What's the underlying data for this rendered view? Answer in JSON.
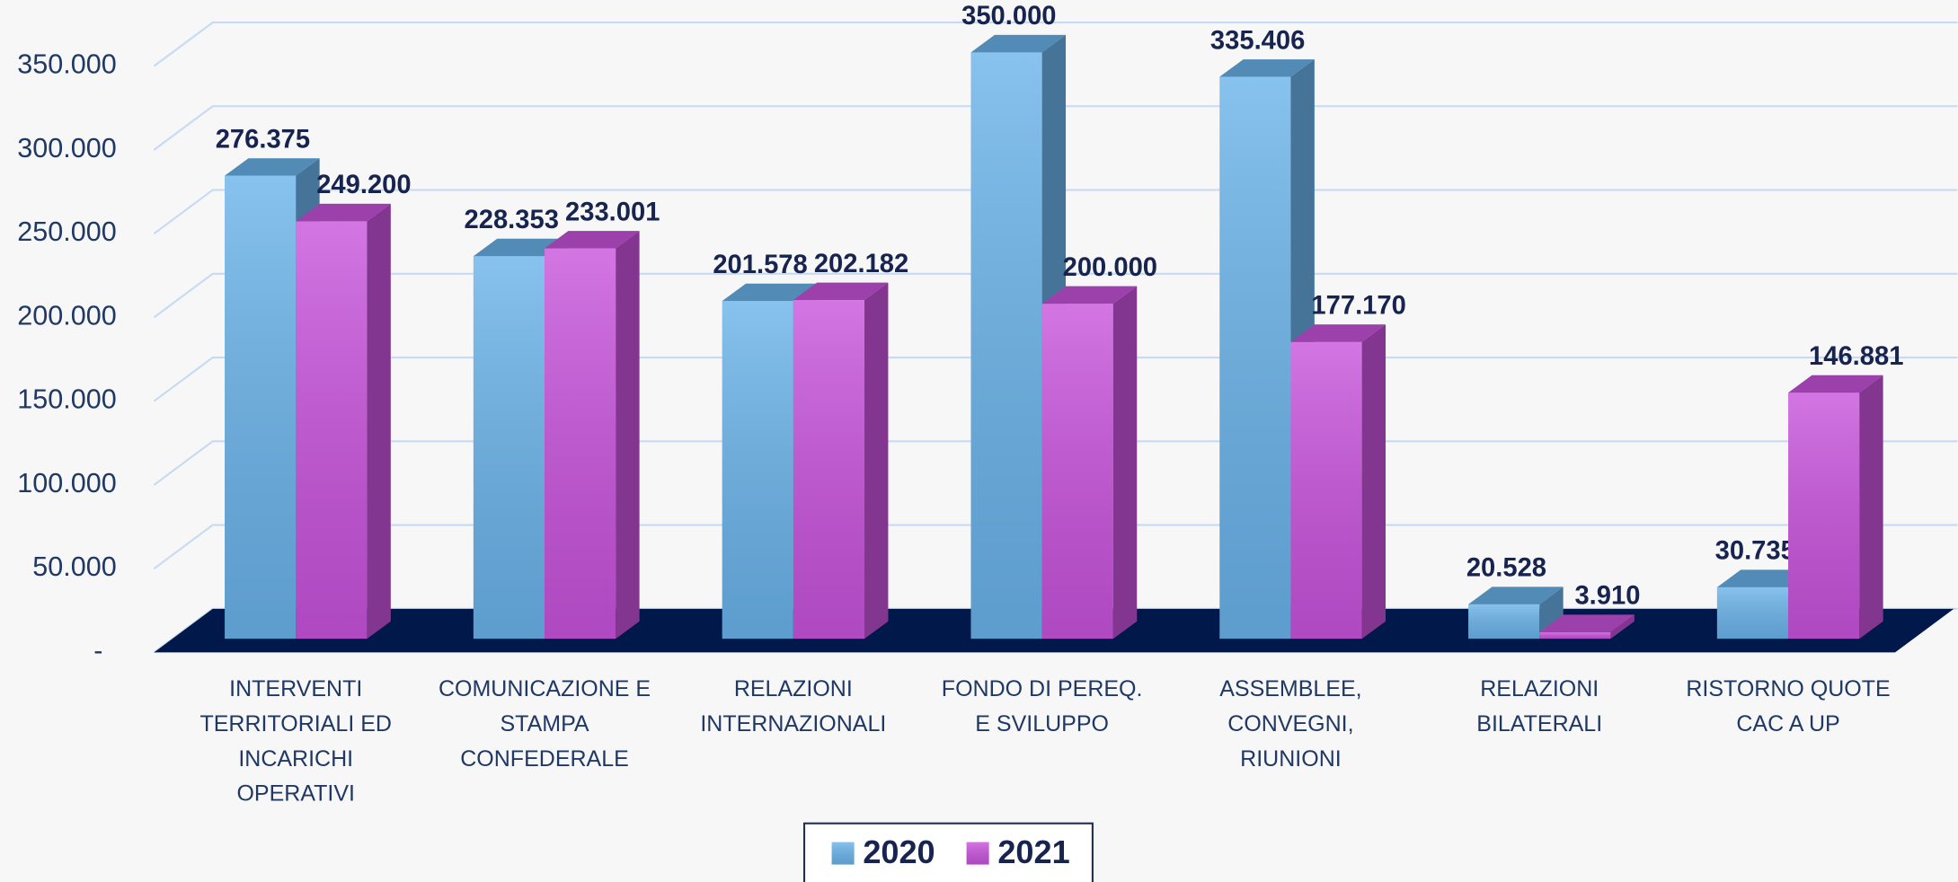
{
  "chart_data": {
    "type": "bar3d",
    "categories": [
      "INTERVENTI TERRITORIALI ED INCARICHI OPERATIVI",
      "COMUNICAZIONE E STAMPA CONFEDERALE",
      "RELAZIONI INTERNAZIONALI",
      "FONDO DI PEREQ. E SVILUPPO",
      "ASSEMBLEE, CONVEGNI, RIUNIONI",
      "RELAZIONI BILATERALI",
      "RISTORNO QUOTE CAC A UP"
    ],
    "series": [
      {
        "name": "2020",
        "color": "#6ab3ea",
        "values": [
          276375,
          228353,
          201578,
          350000,
          335406,
          20528,
          30735
        ],
        "value_labels": [
          "276.375",
          "228.353",
          "201.578",
          "350.000",
          "335.406",
          "20.528",
          "30.735"
        ]
      },
      {
        "name": "2021",
        "color": "#c853dc",
        "values": [
          249200,
          233001,
          202182,
          200000,
          177170,
          3910,
          146881
        ],
        "value_labels": [
          "249.200",
          "233.001",
          "202.182",
          "200.000",
          "177.170",
          "3.910",
          "146.881"
        ]
      }
    ],
    "ylim": [
      0,
      350000
    ],
    "yticks": [
      {
        "value": 0,
        "label": "-"
      },
      {
        "value": 50000,
        "label": "50.000"
      },
      {
        "value": 100000,
        "label": "100.000"
      },
      {
        "value": 150000,
        "label": "150.000"
      },
      {
        "value": 200000,
        "label": "200.000"
      },
      {
        "value": 250000,
        "label": "250.000"
      },
      {
        "value": 300000,
        "label": "300.000"
      },
      {
        "value": 350000,
        "label": "350.000"
      }
    ],
    "grid": true,
    "floor_color": "#00194a",
    "legend": "bottom"
  }
}
